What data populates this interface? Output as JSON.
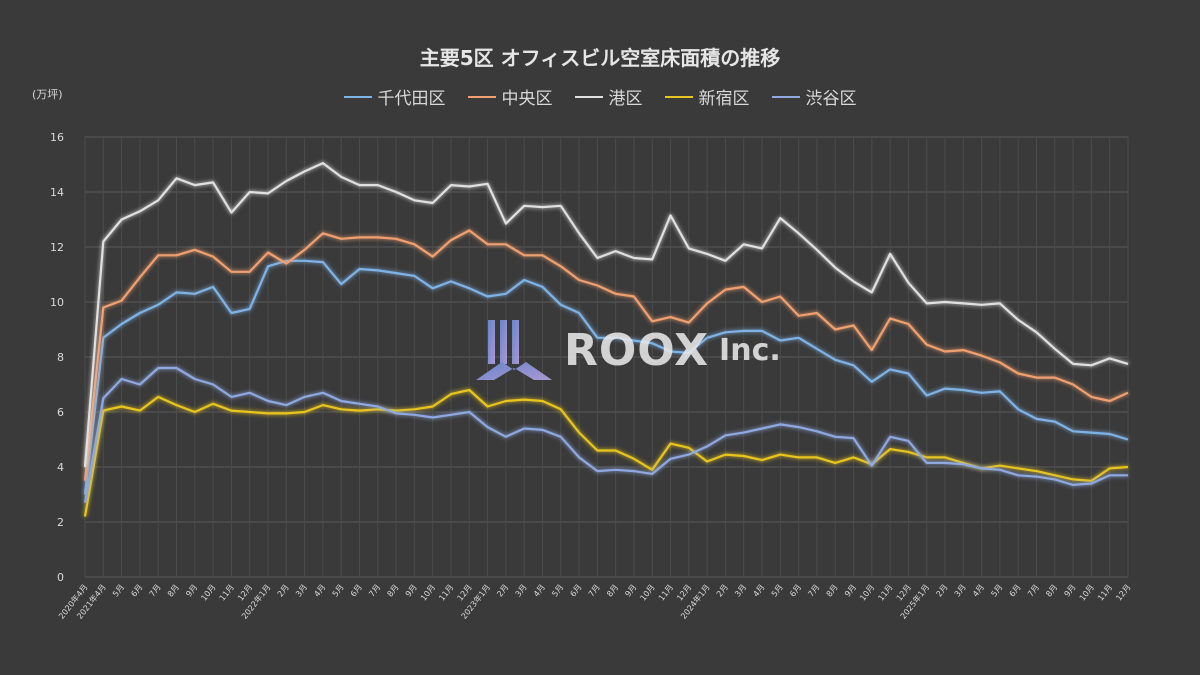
{
  "chart_data": {
    "type": "line",
    "title": "主要5区 オフィスビル空室床面積の推移",
    "unit_label": "(万坪)",
    "ylim": [
      0,
      16
    ],
    "yticks": [
      0,
      2,
      4,
      6,
      8,
      10,
      12,
      14,
      16
    ],
    "grid": true,
    "legend_position": "top",
    "x_labels": [
      "2020年4月",
      "2021年4月",
      "5月",
      "6月",
      "7月",
      "8月",
      "9月",
      "10月",
      "11月",
      "12月",
      "2022年1月",
      "2月",
      "3月",
      "4月",
      "5月",
      "6月",
      "7月",
      "8月",
      "9月",
      "10月",
      "11月",
      "12月",
      "2023年1月",
      "2月",
      "3月",
      "4月",
      "5月",
      "6月",
      "7月",
      "8月",
      "9月",
      "10月",
      "11月",
      "12月",
      "2024年1月",
      "2月",
      "3月",
      "4月",
      "5月",
      "6月",
      "7月",
      "8月",
      "9月",
      "10月",
      "11月",
      "12月",
      "2025年1月",
      "2月",
      "3月",
      "4月",
      "5月",
      "6月",
      "7月",
      "8月",
      "9月",
      "10月",
      "11月",
      "12月"
    ],
    "series": [
      {
        "name": "千代田区",
        "color": "#7fb2e5",
        "values": [
          3.0,
          8.7,
          9.2,
          9.6,
          9.9,
          10.35,
          10.3,
          10.55,
          9.6,
          9.75,
          11.3,
          11.5,
          11.5,
          11.45,
          10.65,
          11.2,
          11.15,
          11.05,
          10.95,
          10.5,
          10.75,
          10.5,
          10.2,
          10.3,
          10.8,
          10.55,
          9.9,
          9.6,
          8.7,
          8.7,
          8.6,
          8.5,
          8.2,
          8.15,
          8.7,
          8.9,
          8.95,
          8.95,
          8.6,
          8.7,
          8.3,
          7.9,
          7.7,
          7.1,
          7.55,
          7.4,
          6.6,
          6.85,
          6.8,
          6.7,
          6.75,
          6.1,
          5.75,
          5.65,
          5.3,
          5.25,
          5.2,
          5.0
        ]
      },
      {
        "name": "中央区",
        "color": "#f0a070",
        "values": [
          3.5,
          9.8,
          10.05,
          10.9,
          11.7,
          11.7,
          11.9,
          11.65,
          11.1,
          11.1,
          11.8,
          11.4,
          11.9,
          12.5,
          12.3,
          12.35,
          12.35,
          12.3,
          12.1,
          11.65,
          12.25,
          12.6,
          12.1,
          12.1,
          11.7,
          11.7,
          11.3,
          10.8,
          10.6,
          10.3,
          10.2,
          9.3,
          9.45,
          9.25,
          9.95,
          10.45,
          10.55,
          10.0,
          10.2,
          9.5,
          9.6,
          9.0,
          9.15,
          8.25,
          9.4,
          9.2,
          8.45,
          8.2,
          8.25,
          8.05,
          7.8,
          7.4,
          7.25,
          7.25,
          7.0,
          6.55,
          6.4,
          6.7
        ]
      },
      {
        "name": "港区",
        "color": "#e0e0e0",
        "values": [
          4.0,
          12.2,
          13.0,
          13.3,
          13.7,
          14.5,
          14.25,
          14.35,
          13.25,
          14.0,
          13.95,
          14.4,
          14.75,
          15.05,
          14.55,
          14.25,
          14.25,
          14.0,
          13.7,
          13.6,
          14.25,
          14.2,
          14.3,
          12.85,
          13.5,
          13.45,
          13.5,
          12.5,
          11.6,
          11.85,
          11.6,
          11.55,
          13.15,
          11.95,
          11.75,
          11.5,
          12.1,
          11.95,
          13.05,
          12.5,
          11.9,
          11.25,
          10.75,
          10.35,
          11.75,
          10.7,
          9.95,
          10.0,
          9.95,
          9.9,
          9.95,
          9.35,
          8.9,
          8.3,
          7.75,
          7.7,
          7.95,
          7.75
        ]
      },
      {
        "name": "新宿区",
        "color": "#e8c51e",
        "values": [
          2.2,
          6.05,
          6.2,
          6.05,
          6.55,
          6.25,
          6.0,
          6.3,
          6.05,
          6.0,
          5.95,
          5.95,
          6.0,
          6.25,
          6.1,
          6.05,
          6.1,
          6.05,
          6.1,
          6.2,
          6.65,
          6.8,
          6.2,
          6.4,
          6.45,
          6.4,
          6.1,
          5.25,
          4.6,
          4.6,
          4.3,
          3.9,
          4.85,
          4.7,
          4.2,
          4.45,
          4.4,
          4.25,
          4.45,
          4.35,
          4.35,
          4.15,
          4.35,
          4.1,
          4.65,
          4.55,
          4.35,
          4.35,
          4.15,
          3.95,
          4.05,
          3.95,
          3.85,
          3.7,
          3.55,
          3.5,
          3.95,
          4.0
        ]
      },
      {
        "name": "渋谷区",
        "color": "#8fa8e0",
        "values": [
          2.7,
          6.5,
          7.2,
          7.0,
          7.6,
          7.6,
          7.2,
          7.0,
          6.55,
          6.7,
          6.4,
          6.25,
          6.55,
          6.7,
          6.4,
          6.3,
          6.2,
          5.95,
          5.9,
          5.8,
          5.9,
          6.0,
          5.45,
          5.1,
          5.4,
          5.35,
          5.1,
          4.35,
          3.85,
          3.9,
          3.85,
          3.75,
          4.3,
          4.45,
          4.75,
          5.15,
          5.25,
          5.4,
          5.55,
          5.45,
          5.3,
          5.1,
          5.05,
          4.05,
          5.1,
          4.95,
          4.15,
          4.15,
          4.1,
          3.95,
          3.9,
          3.7,
          3.65,
          3.55,
          3.35,
          3.4,
          3.7,
          3.7
        ]
      }
    ]
  },
  "logo": {
    "text": "ROOX",
    "suffix": "Inc."
  }
}
